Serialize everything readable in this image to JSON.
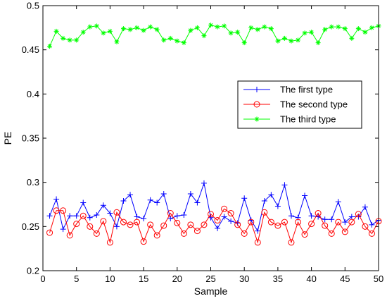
{
  "chart_data": {
    "type": "line",
    "xlabel": "Sample",
    "ylabel": "PE",
    "xlim": [
      0,
      50
    ],
    "ylim": [
      0.2,
      0.5
    ],
    "xticks": [
      0,
      5,
      10,
      15,
      20,
      25,
      30,
      35,
      40,
      45,
      50
    ],
    "yticks": [
      0.2,
      0.25,
      0.3,
      0.35,
      0.4,
      0.45,
      0.5
    ],
    "ytick_labels": [
      "0.2",
      "0.25",
      "0.3",
      "0.35",
      "0.4",
      "0.45",
      "0.5"
    ],
    "grid": false,
    "legend_position": "right",
    "x": [
      1,
      2,
      3,
      4,
      5,
      6,
      7,
      8,
      9,
      10,
      11,
      12,
      13,
      14,
      15,
      16,
      17,
      18,
      19,
      20,
      21,
      22,
      23,
      24,
      25,
      26,
      27,
      28,
      29,
      30,
      31,
      32,
      33,
      34,
      35,
      36,
      37,
      38,
      39,
      40,
      41,
      42,
      43,
      44,
      45,
      46,
      47,
      48,
      49,
      50
    ],
    "series": [
      {
        "name": "The first type",
        "color": "#0000ff",
        "marker": "plus",
        "values": [
          0.262,
          0.281,
          0.247,
          0.262,
          0.262,
          0.277,
          0.26,
          0.263,
          0.274,
          0.265,
          0.25,
          0.279,
          0.286,
          0.261,
          0.259,
          0.28,
          0.277,
          0.287,
          0.259,
          0.262,
          0.263,
          0.287,
          0.277,
          0.299,
          0.26,
          0.248,
          0.261,
          0.256,
          0.254,
          0.282,
          0.257,
          0.245,
          0.279,
          0.286,
          0.273,
          0.297,
          0.262,
          0.26,
          0.285,
          0.262,
          0.261,
          0.258,
          0.258,
          0.278,
          0.255,
          0.261,
          0.261,
          0.272,
          0.252,
          0.257
        ]
      },
      {
        "name": "The second type",
        "color": "#ff0000",
        "marker": "circle",
        "values": [
          0.243,
          0.268,
          0.268,
          0.24,
          0.253,
          0.262,
          0.25,
          0.242,
          0.256,
          0.232,
          0.266,
          0.255,
          0.252,
          0.255,
          0.233,
          0.252,
          0.24,
          0.251,
          0.265,
          0.254,
          0.242,
          0.252,
          0.245,
          0.252,
          0.264,
          0.257,
          0.27,
          0.265,
          0.252,
          0.242,
          0.255,
          0.232,
          0.266,
          0.255,
          0.251,
          0.255,
          0.232,
          0.255,
          0.241,
          0.253,
          0.265,
          0.251,
          0.242,
          0.255,
          0.244,
          0.255,
          0.264,
          0.25,
          0.242,
          0.256
        ]
      },
      {
        "name": "The third type",
        "color": "#00ff00",
        "marker": "star",
        "values": [
          0.454,
          0.471,
          0.463,
          0.461,
          0.461,
          0.47,
          0.476,
          0.477,
          0.469,
          0.471,
          0.459,
          0.474,
          0.473,
          0.475,
          0.472,
          0.476,
          0.473,
          0.461,
          0.463,
          0.46,
          0.458,
          0.472,
          0.475,
          0.466,
          0.478,
          0.476,
          0.477,
          0.469,
          0.47,
          0.458,
          0.475,
          0.473,
          0.476,
          0.474,
          0.46,
          0.463,
          0.46,
          0.461,
          0.469,
          0.47,
          0.458,
          0.473,
          0.476,
          0.476,
          0.474,
          0.463,
          0.474,
          0.47,
          0.475,
          0.477
        ]
      }
    ]
  }
}
